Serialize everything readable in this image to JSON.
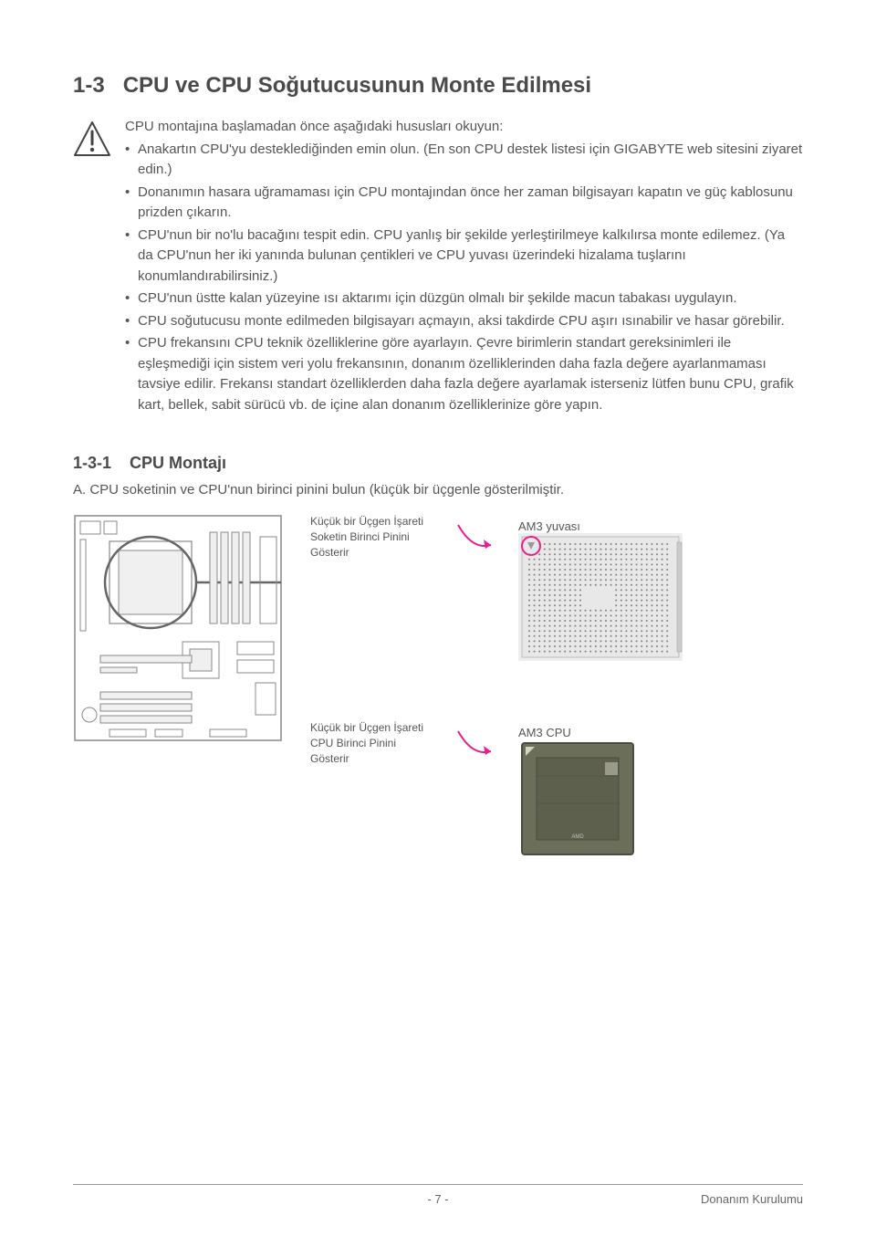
{
  "page": {
    "section_number": "1-3",
    "section_title": "CPU ve CPU Soğutucusunun Monte Edilmesi",
    "intro_text": "CPU montajına başlamadan önce aşağıdaki hususları okuyun:",
    "bullets": [
      "Anakartın CPU'yu desteklediğinden emin olun.\n(En son CPU destek listesi için GIGABYTE web sitesini ziyaret edin.)",
      "Donanımın hasara uğramaması için CPU montajından önce her zaman bilgisayarı kapatın ve güç kablosunu prizden çıkarın.",
      "CPU'nun bir no'lu bacağını tespit edin. CPU yanlış bir şekilde yerleştirilmeye kalkılırsa monte edilemez. (Ya da CPU'nun her iki yanında bulunan çentikleri ve CPU yuvası üzerindeki hizalama tuşlarını konumlandırabilirsiniz.)",
      "CPU'nun üstte kalan yüzeyine ısı aktarımı için düzgün olmalı bir şekilde macun tabakası uygulayın.",
      "CPU soğutucusu monte edilmeden bilgisayarı açmayın, aksi takdirde CPU aşırı ısınabilir ve hasar görebilir.",
      "CPU frekansını CPU teknik özelliklerine göre ayarlayın. Çevre birimlerin standart gereksinimleri ile eşleşmediği için sistem veri yolu frekansının, donanım özelliklerinden daha fazla değere ayarlanmaması tavsiye edilir. Frekansı standart özelliklerden daha fazla değere ayarlamak isterseniz lütfen bunu CPU, grafik kart, bellek, sabit sürücü vb. de içine alan donanım özelliklerinize göre yapın."
    ],
    "subsection_number": "1-3-1",
    "subsection_title": "CPU Montajı",
    "step_a": "A.   CPU soketinin ve CPU'nun birinci pinini bulun (küçük bir üçgenle gösterilmiştir.",
    "caption1_lines": [
      "Küçük bir Üçgen İşareti",
      "Soketin Birinci Pinini",
      "Gösterir"
    ],
    "caption2_lines": [
      "Küçük bir Üçgen İşareti",
      "CPU Birinci Pinini",
      "Gösterir"
    ],
    "socket_label": "AM3 yuvası",
    "cpu_label": "AM3 CPU",
    "footer_page": "- 7 -",
    "footer_label": "Donanım Kurulumu"
  },
  "styling": {
    "text_color": "#555555",
    "heading_color": "#4a4a4a",
    "body_fontsize": 15,
    "heading_fontsize": 24,
    "arrow_color": "#e91e8c",
    "warning_border": "#444444",
    "socket_bg": "#e8e8e8",
    "socket_dot": "#808080",
    "cpu_bg": "#6b6f5a",
    "cpu_dark": "#4a4d3e",
    "mobo_stroke": "#888888",
    "mobo_circle": "#666666",
    "line_color": "#999999"
  }
}
